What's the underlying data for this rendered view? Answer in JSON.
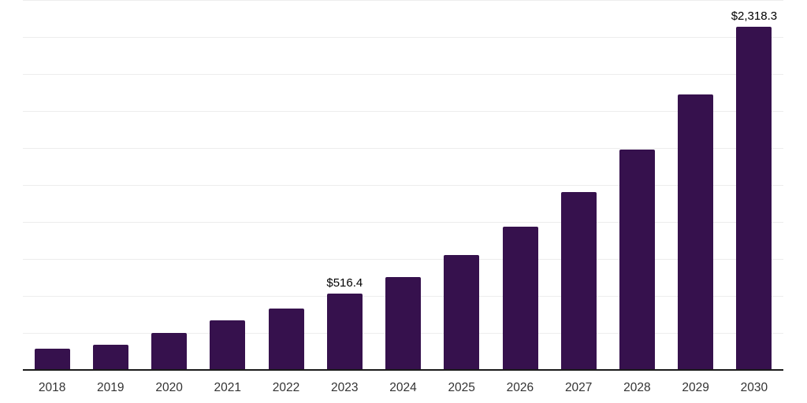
{
  "chart_data": {
    "type": "bar",
    "title": "",
    "xlabel": "",
    "ylabel": "",
    "categories": [
      "2018",
      "2019",
      "2020",
      "2021",
      "2022",
      "2023",
      "2024",
      "2025",
      "2026",
      "2027",
      "2028",
      "2029",
      "2030"
    ],
    "values": [
      145.0,
      171.0,
      248.0,
      335.0,
      415.0,
      516.4,
      629.0,
      778.0,
      970.0,
      1204.0,
      1492.0,
      1860.0,
      2318.3
    ],
    "value_labels": {
      "2023": "$516.4",
      "2030": "$2,318.3"
    },
    "ylim": [
      0,
      2500
    ],
    "gridline_step": 250,
    "grid": true,
    "legend_position": "none",
    "bar_color": "#36114d",
    "axis_color": "#1a1a1a",
    "gridline_color": "#ededed",
    "label_color": "#333333",
    "annotation_color": "#000000"
  }
}
